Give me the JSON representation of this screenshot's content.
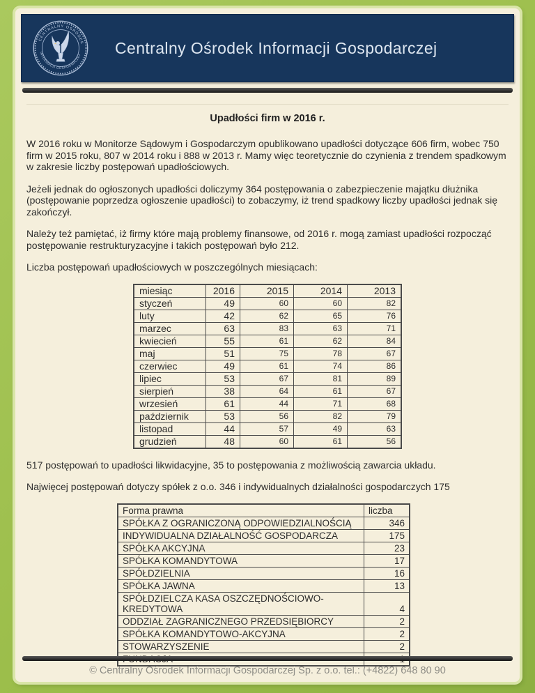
{
  "header": {
    "title": "Centralny Ośrodek Informacji Gospodarczej",
    "seal_text_top": "CENTRALNY OŚRODEK",
    "seal_text_bottom": "INFORMACJI GOSPODARCZEJ"
  },
  "article": {
    "title": "Upadłości firm w 2016 r.",
    "paragraphs": [
      "W 2016 roku w Monitorze Sądowym i Gospodarczym opublikowano upadłości dotyczące 606 firm, wobec 750 firm w 2015 roku, 807 w 2014 roku i 888 w 2013 r. Mamy więc teoretycznie do czynienia z trendem spadkowym w zakresie liczby postępowań upadłościowych.",
      "Jeżeli jednak do ogłoszonych upadłości doliczymy 364 postępowania o zabezpieczenie majątku dłużnika (postępowanie poprzedza ogłoszenie upadłości) to zobaczymy, iż trend spadkowy liczby upadłości jednak się zakończył.",
      "Należy też pamiętać, iż firmy które mają problemy finansowe, od 2016 r. mogą zamiast upadłości rozpocząć postępowanie restrukturyzacyjne i takich postępowań było 212.",
      "Liczba postępowań upadłościowych w poszczególnych miesiącach:"
    ],
    "monthly_table": {
      "columns": [
        "miesiąc",
        "2016",
        "2015",
        "2014",
        "2013"
      ],
      "rows": [
        [
          "styczeń",
          49,
          60,
          60,
          82
        ],
        [
          "luty",
          42,
          62,
          65,
          76
        ],
        [
          "marzec",
          63,
          83,
          63,
          71
        ],
        [
          "kwiecień",
          55,
          61,
          62,
          84
        ],
        [
          "maj",
          51,
          75,
          78,
          67
        ],
        [
          "czerwiec",
          49,
          61,
          74,
          86
        ],
        [
          "lipiec",
          53,
          67,
          81,
          89
        ],
        [
          "sierpień",
          38,
          64,
          61,
          67
        ],
        [
          "wrzesień",
          61,
          44,
          71,
          68
        ],
        [
          "październik",
          53,
          56,
          82,
          79
        ],
        [
          "listopad",
          44,
          57,
          49,
          63
        ],
        [
          "grudzień",
          48,
          60,
          61,
          56
        ]
      ]
    },
    "note_liquidation": "517 postępowań to upadłości likwidacyjne, 35 to postępowania z możliwością zawarcia układu.",
    "note_legal_forms": "Najwięcej postępowań dotyczy spółek z o.o. 346 i indywidualnych działalności gospodarczych 175",
    "legal_form_table": {
      "columns": [
        "Forma prawna",
        "liczba"
      ],
      "rows": [
        [
          "SPÓŁKA Z OGRANICZONĄ ODPOWIEDZIALNOŚCIĄ",
          346
        ],
        [
          "INDYWIDUALNA DZIAŁALNOŚĆ GOSPODARCZA",
          175
        ],
        [
          "SPÓŁKA AKCYJNA",
          23
        ],
        [
          "SPÓŁKA KOMANDYTOWA",
          17
        ],
        [
          "SPÓŁDZIELNIA",
          16
        ],
        [
          "SPÓŁKA JAWNA",
          13
        ],
        [
          "SPÓŁDZIELCZA KASA OSZCZĘDNOŚCIOWO-KREDYTOWA",
          4
        ],
        [
          "ODDZIAŁ ZAGRANICZNEGO PRZEDSIĘBIORCY",
          2
        ],
        [
          "SPÓŁKA KOMANDYTOWO-AKCYJNA",
          2
        ],
        [
          "STOWARZYSZENIE",
          2
        ],
        [
          "FUNDACJA",
          1
        ]
      ]
    }
  },
  "footer": {
    "text": "© Centralny Ośrodek Informacji Gospodarczej Sp. z o.o. tel.: (+4822) 648 80 90"
  },
  "colors": {
    "frame_green": "#9dbf4e",
    "frame_inner_edge": "#d9e5a8",
    "page_cream": "#f5efdc",
    "header_navy": "#17365c",
    "seal_light_blue": "#aebfd8",
    "bar_dark": "#1f1f1f",
    "body_text": "#2d2d2d",
    "table_border": "#4a4a4a",
    "footer_text": "#8e8d86"
  }
}
